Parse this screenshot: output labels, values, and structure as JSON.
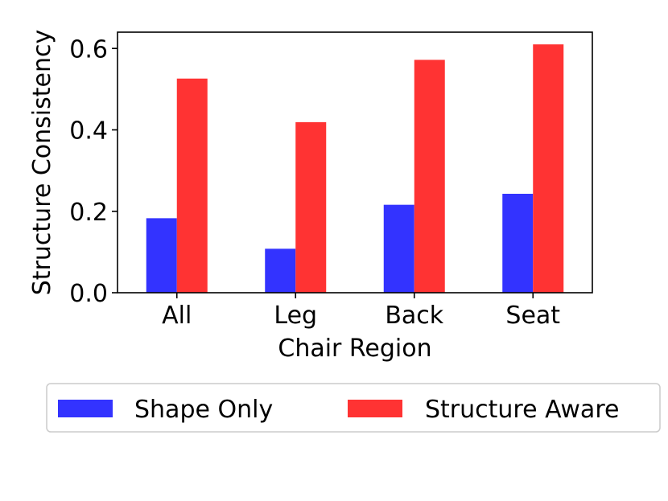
{
  "chart_data": {
    "type": "bar",
    "title": "",
    "xlabel": "Chair Region",
    "ylabel": "Structure Consistency",
    "categories": [
      "All",
      "Leg",
      "Back",
      "Seat"
    ],
    "series": [
      {
        "name": "Shape Only",
        "color": "#3333ff",
        "values": [
          0.183,
          0.108,
          0.216,
          0.243
        ]
      },
      {
        "name": "Structure Aware",
        "color": "#ff3333",
        "values": [
          0.526,
          0.419,
          0.572,
          0.61
        ]
      }
    ],
    "ylim": [
      0,
      0.64
    ],
    "yticks": [
      0.0,
      0.2,
      0.4,
      0.6
    ],
    "ytick_labels": [
      "0.0",
      "0.2",
      "0.4",
      "0.6"
    ],
    "grid": false,
    "legend_position": "below"
  }
}
